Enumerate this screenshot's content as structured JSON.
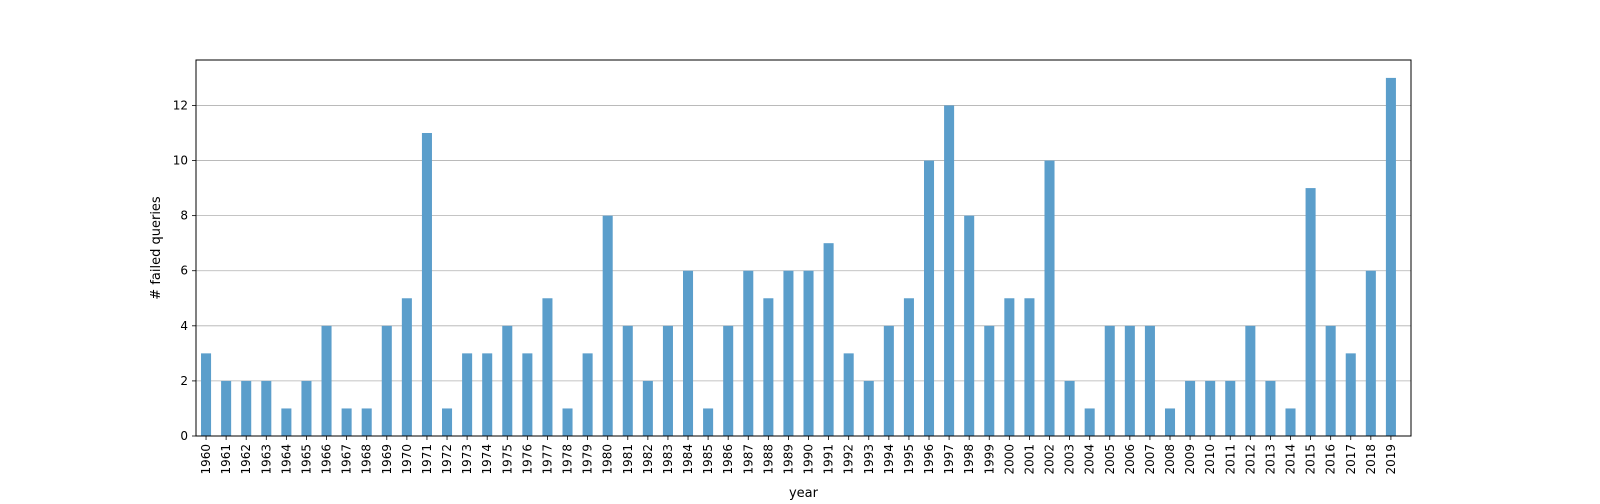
{
  "chart_data": {
    "type": "bar",
    "title": "",
    "xlabel": "year",
    "ylabel": "# failed queries",
    "categories": [
      "1960",
      "1961",
      "1962",
      "1963",
      "1964",
      "1965",
      "1966",
      "1967",
      "1968",
      "1969",
      "1970",
      "1971",
      "1972",
      "1973",
      "1974",
      "1975",
      "1976",
      "1977",
      "1978",
      "1979",
      "1980",
      "1981",
      "1982",
      "1983",
      "1984",
      "1985",
      "1986",
      "1987",
      "1988",
      "1989",
      "1990",
      "1991",
      "1992",
      "1993",
      "1994",
      "1995",
      "1996",
      "1997",
      "1998",
      "1999",
      "2000",
      "2001",
      "2002",
      "2003",
      "2004",
      "2005",
      "2006",
      "2007",
      "2008",
      "2009",
      "2010",
      "2011",
      "2012",
      "2013",
      "2014",
      "2015",
      "2016",
      "2017",
      "2018",
      "2019"
    ],
    "values": [
      3,
      2,
      2,
      2,
      1,
      2,
      4,
      1,
      1,
      4,
      5,
      11,
      1,
      3,
      3,
      4,
      3,
      5,
      1,
      3,
      8,
      4,
      2,
      4,
      6,
      1,
      4,
      6,
      5,
      6,
      6,
      7,
      3,
      2,
      4,
      5,
      10,
      12,
      8,
      4,
      5,
      5,
      10,
      2,
      1,
      4,
      4,
      4,
      1,
      2,
      2,
      2,
      4,
      2,
      1,
      9,
      4,
      3,
      6,
      13
    ],
    "yticks": [
      0,
      2,
      4,
      6,
      8,
      10,
      12
    ],
    "ylim": [
      0,
      13.65
    ],
    "grid": "y",
    "bar_color": "#5b9ecb"
  }
}
